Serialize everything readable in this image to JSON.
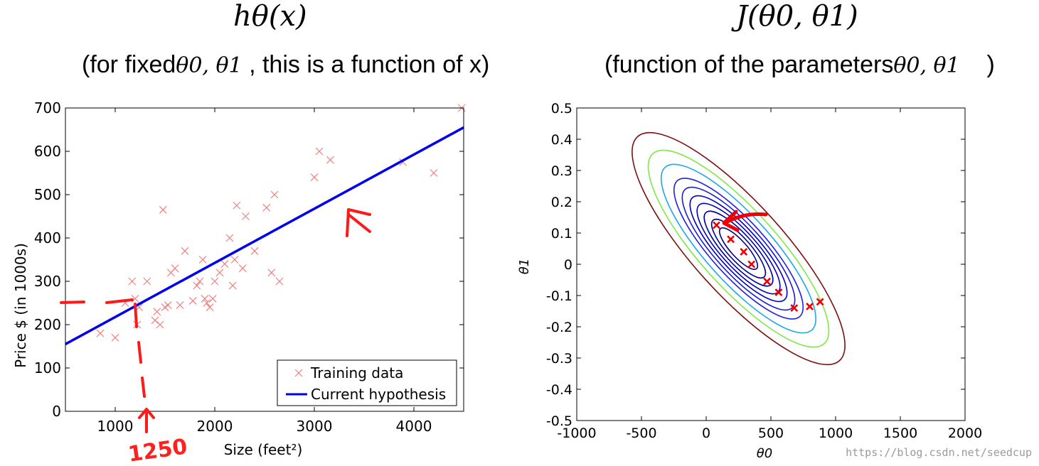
{
  "left_panel": {
    "title": "hθ(x)",
    "subtitle_pre": "(for fixed",
    "subtitle_math": "θ0, θ1",
    "subtitle_post": " , this is a function of x)"
  },
  "right_panel": {
    "title": "J(θ0, θ1)",
    "subtitle_pre": "(function of the parameters",
    "subtitle_math": "θ0, θ1",
    "subtitle_post": "    )"
  },
  "annotation": {
    "handwritten_value": "1250"
  },
  "watermark": "https://blog.csdn.net/seedcup",
  "chart_data": [
    {
      "type": "scatter",
      "xlabel": "Size (feet²)",
      "ylabel": "Price $ (in 1000s)",
      "xlim": [
        500,
        4500
      ],
      "ylim": [
        0,
        700
      ],
      "xticks": [
        1000,
        2000,
        3000,
        4000
      ],
      "yticks": [
        0,
        100,
        200,
        300,
        400,
        500,
        600,
        700
      ],
      "legend_position": "bottom-right",
      "series": [
        {
          "name": "Training data",
          "type": "scatter",
          "color": "#f08080",
          "points": [
            [
              850,
              180
            ],
            [
              1000,
              170
            ],
            [
              1200,
              260
            ],
            [
              1240,
              240
            ],
            [
              1220,
              200
            ],
            [
              1320,
              300
            ],
            [
              1100,
              250
            ],
            [
              1170,
              300
            ],
            [
              1400,
              210
            ],
            [
              1420,
              230
            ],
            [
              1450,
              200
            ],
            [
              1480,
              465
            ],
            [
              1500,
              240
            ],
            [
              1530,
              245
            ],
            [
              1560,
              320
            ],
            [
              1600,
              330
            ],
            [
              1650,
              245
            ],
            [
              1700,
              370
            ],
            [
              1780,
              255
            ],
            [
              1820,
              290
            ],
            [
              1850,
              300
            ],
            [
              1880,
              350
            ],
            [
              1900,
              260
            ],
            [
              1920,
              250
            ],
            [
              1950,
              240
            ],
            [
              1980,
              260
            ],
            [
              2000,
              300
            ],
            [
              2050,
              320
            ],
            [
              2100,
              340
            ],
            [
              2150,
              400
            ],
            [
              2180,
              290
            ],
            [
              2200,
              350
            ],
            [
              2220,
              475
            ],
            [
              2280,
              330
            ],
            [
              2310,
              450
            ],
            [
              2400,
              370
            ],
            [
              2520,
              470
            ],
            [
              2570,
              320
            ],
            [
              2600,
              500
            ],
            [
              2650,
              300
            ],
            [
              3000,
              540
            ],
            [
              3050,
              600
            ],
            [
              3160,
              580
            ],
            [
              3890,
              575
            ],
            [
              4200,
              550
            ],
            [
              4480,
              700
            ]
          ]
        },
        {
          "name": "Current hypothesis",
          "type": "line",
          "color": "#0000ee",
          "points": [
            [
              500,
              155
            ],
            [
              4500,
              655
            ]
          ]
        }
      ]
    },
    {
      "type": "contour",
      "xlabel": "θ0",
      "ylabel": "θ1",
      "xlim": [
        -1000,
        2000
      ],
      "ylim": [
        -0.5,
        0.5
      ],
      "xticks": [
        -1000,
        -500,
        0,
        500,
        1000,
        1500,
        2000
      ],
      "yticks": [
        0.5,
        0.4,
        0.3,
        0.2,
        0.1,
        0,
        -0.1,
        -0.2,
        -0.3,
        -0.4,
        -0.5
      ],
      "ytick_labels": [
        "0.5",
        "0.4",
        "0.3",
        "0.2",
        "0.1",
        "0",
        "-0.1",
        "-0.2",
        "-0.3",
        "-0.4",
        "-0.5"
      ],
      "contour_center": [
        250,
        0.05
      ],
      "contour_levels": [
        {
          "k": 0.4,
          "color": "#000080"
        },
        {
          "k": 0.8,
          "color": "#00008b"
        },
        {
          "k": 1.3,
          "color": "#0000a0"
        },
        {
          "k": 1.9,
          "color": "#0000b4"
        },
        {
          "k": 2.6,
          "color": "#0000c8"
        },
        {
          "k": 3.5,
          "color": "#1a1ad2"
        },
        {
          "k": 4.6,
          "color": "#2020e0"
        },
        {
          "k": 6.6,
          "color": "#1ea6ea"
        },
        {
          "k": 9.0,
          "color": "#7fe846"
        },
        {
          "k": 12.5,
          "color": "#7a1010"
        }
      ],
      "descent_path": [
        [
          880,
          -0.12
        ],
        [
          800,
          -0.135
        ],
        [
          680,
          -0.14
        ],
        [
          560,
          -0.09
        ],
        [
          470,
          -0.055
        ],
        [
          350,
          0
        ],
        [
          290,
          0.04
        ],
        [
          190,
          0.08
        ],
        [
          80,
          0.125
        ]
      ],
      "marker_color": "#ee0000"
    }
  ]
}
